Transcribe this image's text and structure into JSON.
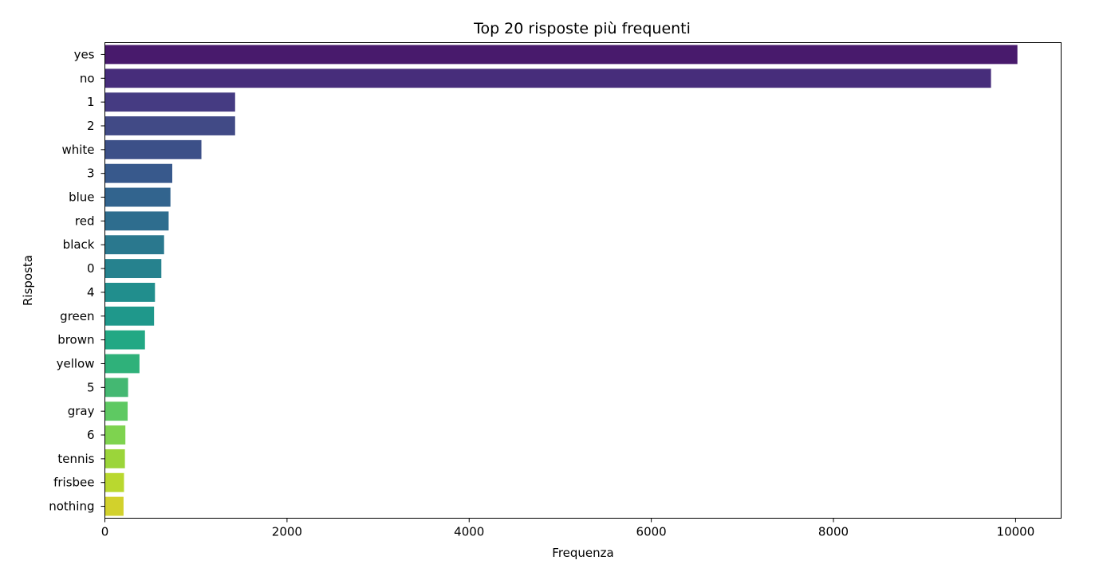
{
  "chart_data": {
    "type": "bar",
    "orientation": "horizontal",
    "title": "Top 20 risposte più frequenti",
    "xlabel": "Frequenza",
    "ylabel": "Risposta",
    "xlim": [
      0,
      10500
    ],
    "xticks": [
      0,
      2000,
      4000,
      6000,
      8000,
      10000
    ],
    "grid": false,
    "legend": "none",
    "colormap": "viridis",
    "categories": [
      "yes",
      "no",
      "1",
      "2",
      "white",
      "3",
      "blue",
      "red",
      "black",
      "0",
      "4",
      "green",
      "brown",
      "yellow",
      "5",
      "gray",
      "6",
      "tennis",
      "frisbee",
      "nothing"
    ],
    "values": [
      10020,
      9730,
      1430,
      1430,
      1060,
      740,
      720,
      700,
      650,
      620,
      550,
      540,
      440,
      380,
      255,
      250,
      225,
      220,
      210,
      205
    ],
    "colors": [
      "#481a6c",
      "#472d7b",
      "#453b82",
      "#414a86",
      "#3c5088",
      "#38598c",
      "#32648e",
      "#2e6d8e",
      "#2a788e",
      "#26828e",
      "#218e8d",
      "#1f988b",
      "#22a884",
      "#2fb17a",
      "#44b872",
      "#5ec962",
      "#7ed34f",
      "#9bd53a",
      "#b9d82f",
      "#d2d12c"
    ]
  }
}
